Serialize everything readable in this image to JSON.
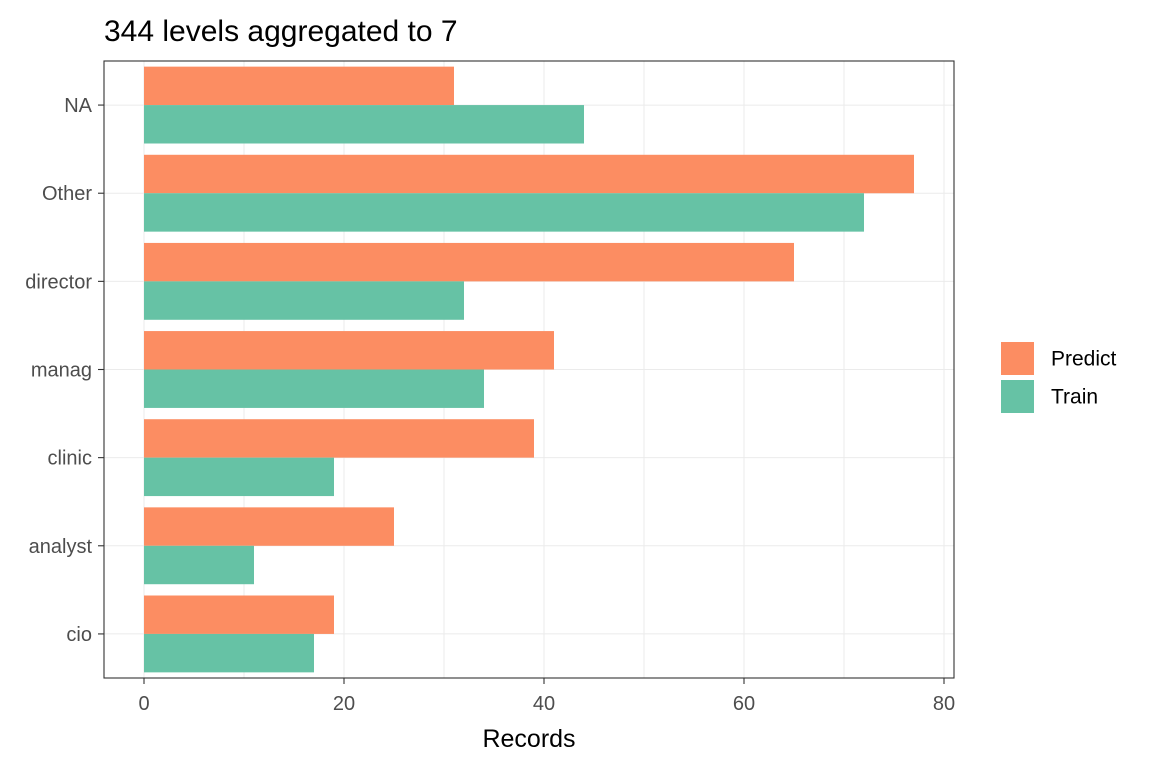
{
  "chart_data": {
    "type": "bar",
    "orientation": "horizontal",
    "title": "344 levels aggregated to 7",
    "xlabel": "Records",
    "ylabel": "",
    "categories": [
      "NA",
      "Other",
      "director",
      "manag",
      "clinic",
      "analyst",
      "cio"
    ],
    "series": [
      {
        "name": "Predict",
        "color": "#fc8d62",
        "values": [
          31,
          77,
          65,
          41,
          39,
          25,
          19
        ]
      },
      {
        "name": "Train",
        "color": "#66c2a5",
        "values": [
          44,
          72,
          32,
          34,
          19,
          11,
          17
        ]
      }
    ],
    "xlim": [
      -4,
      81
    ],
    "xticks": [
      0,
      20,
      40,
      60,
      80
    ],
    "grid": true,
    "legend_position": "right"
  }
}
